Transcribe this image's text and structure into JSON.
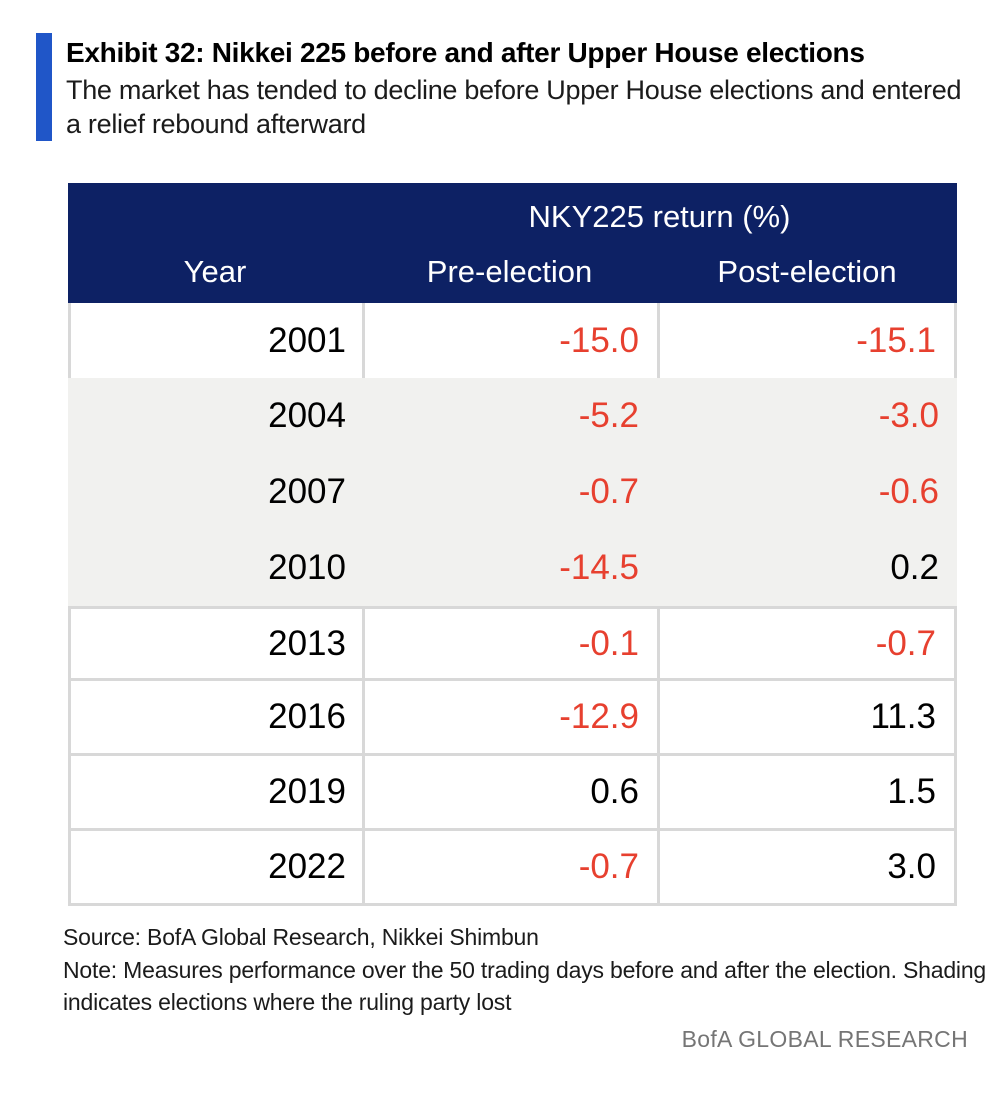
{
  "chart_data": {
    "type": "table",
    "title": "Exhibit 32: Nikkei 225 before and after Upper House elections",
    "subtitle": "The market has tended to decline before Upper House elections and entered a relief rebound afterward",
    "group_header": "NKY225 return (%)",
    "columns": [
      "Year",
      "Pre-election",
      "Post-election"
    ],
    "rows": [
      {
        "year": "2001",
        "pre_election": "-15.0",
        "post_election": "-15.1",
        "ruling_party_lost": false
      },
      {
        "year": "2004",
        "pre_election": "-5.2",
        "post_election": "-3.0",
        "ruling_party_lost": true
      },
      {
        "year": "2007",
        "pre_election": "-0.7",
        "post_election": "-0.6",
        "ruling_party_lost": true
      },
      {
        "year": "2010",
        "pre_election": "-14.5",
        "post_election": "0.2",
        "ruling_party_lost": true
      },
      {
        "year": "2013",
        "pre_election": "-0.1",
        "post_election": "-0.7",
        "ruling_party_lost": false
      },
      {
        "year": "2016",
        "pre_election": "-12.9",
        "post_election": "11.3",
        "ruling_party_lost": false
      },
      {
        "year": "2019",
        "pre_election": "0.6",
        "post_election": "1.5",
        "ruling_party_lost": false
      },
      {
        "year": "2022",
        "pre_election": "-0.7",
        "post_election": "3.0",
        "ruling_party_lost": false
      }
    ]
  },
  "footer": {
    "source": "Source: BofA Global Research, Nikkei Shimbun",
    "note": "Note: Measures performance over the 50 trading days before and after the election. Shading indicates elections where the ruling party lost",
    "brand": "BofA GLOBAL RESEARCH"
  },
  "colors": {
    "header_navy": "#0d2164",
    "negative_red": "#e7402f",
    "shaded_row": "#f1f1ef",
    "cell_border": "#d8d8d8",
    "accent_bar_blue": "#2056c8",
    "brand_gray": "#757575"
  }
}
